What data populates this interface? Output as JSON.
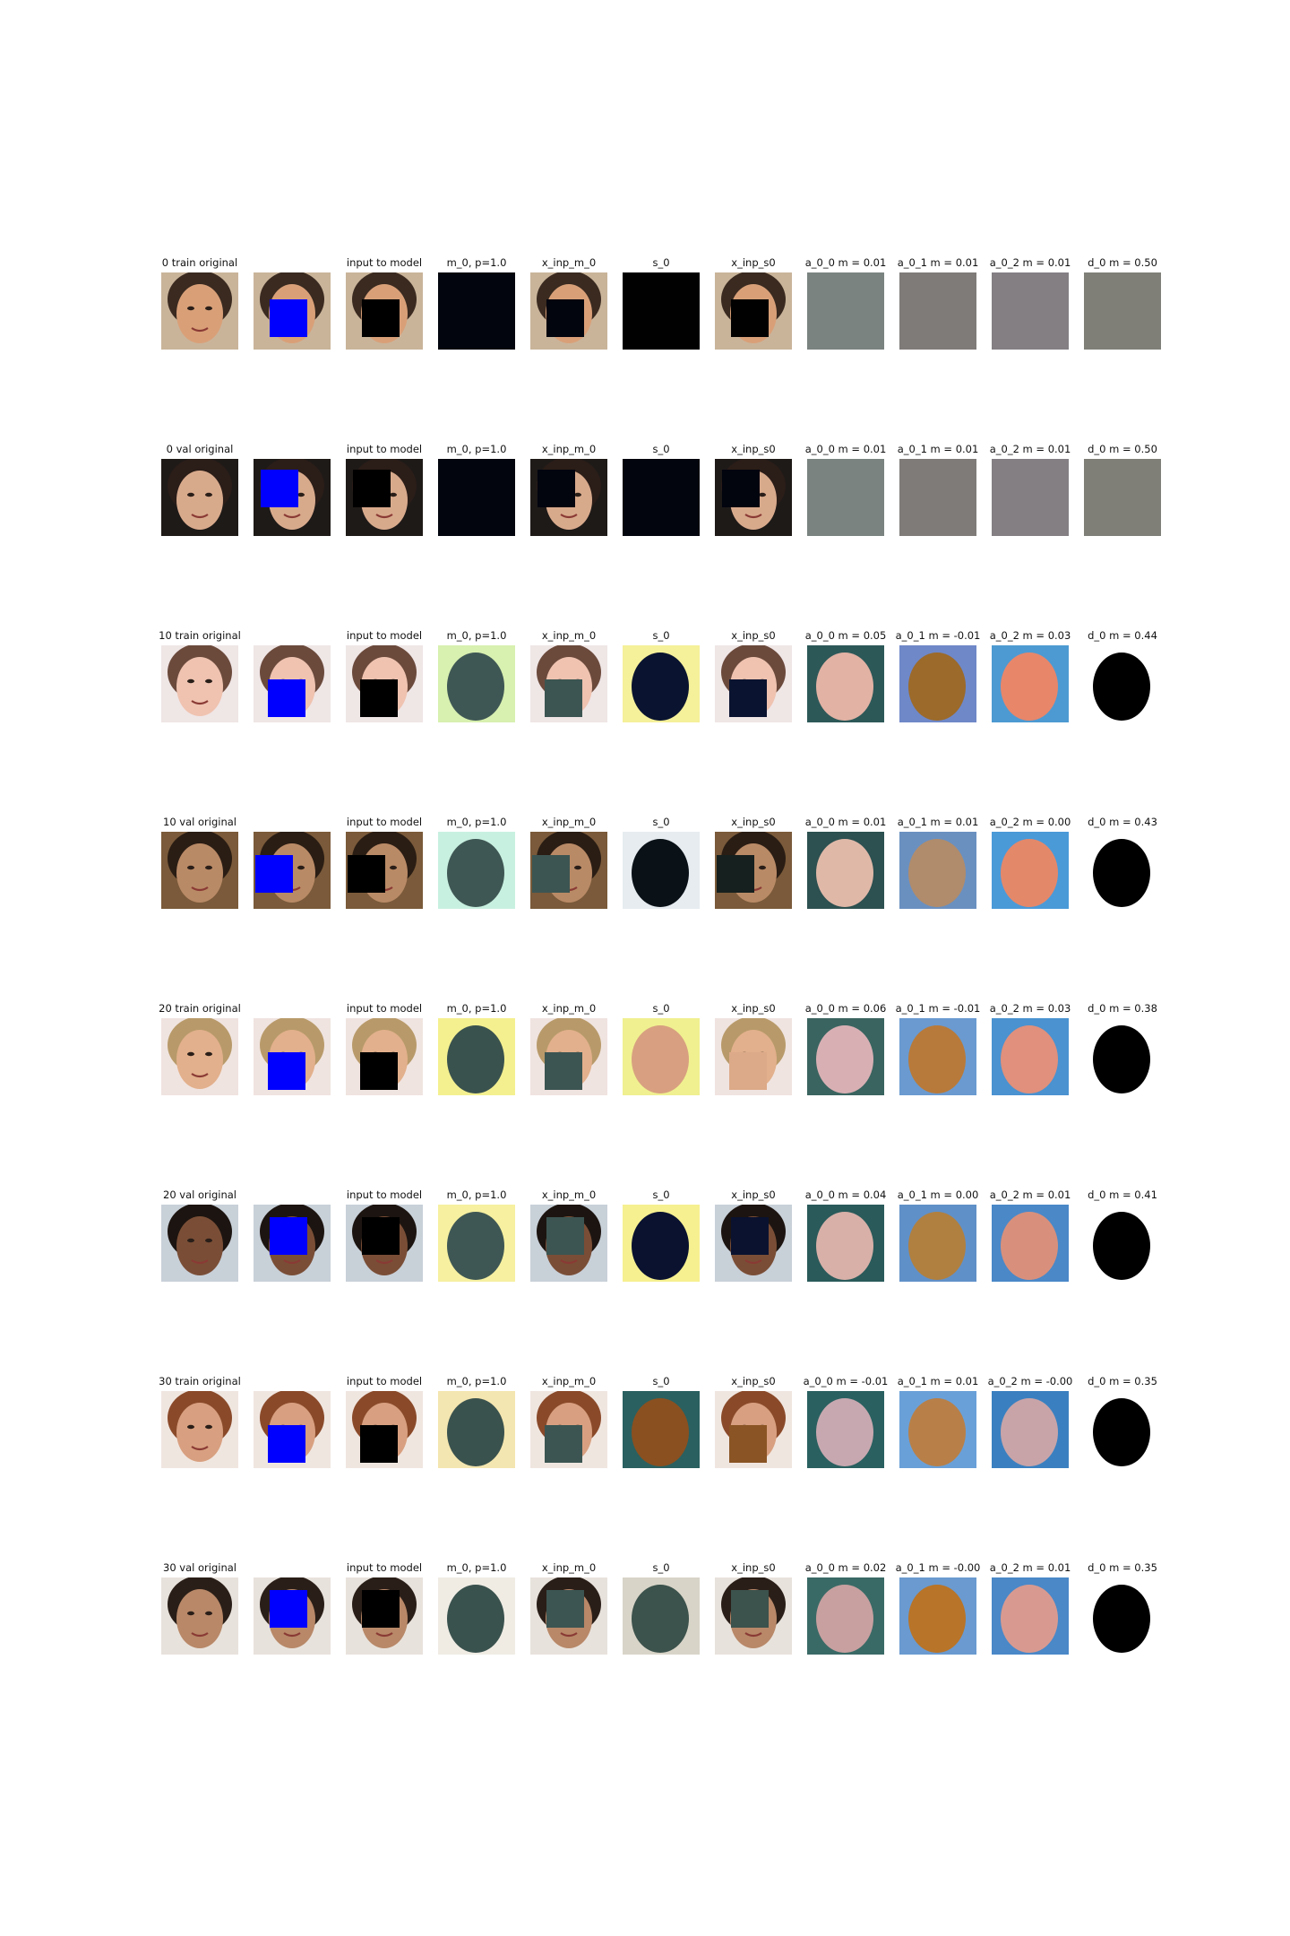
{
  "colors": {
    "mask_fill": "#0000ff",
    "hole_fill": "#000000",
    "m0_initial": "#02040e",
    "a00_initial": "#7a8380",
    "a01_initial": "#7f7b79",
    "a02_initial": "#837f83",
    "d0_initial": "#7f7f78"
  },
  "rows": [
    {
      "label": "0 train  original",
      "skin": "#d9a078",
      "hair": "#3a2a20",
      "bg": "#c9b49a",
      "mask_pos": "center-low",
      "titles": [
        "0 train  original",
        "",
        "input to model",
        "m_0, p=1.0",
        "x_inp_m_0",
        "s_0",
        "x_inp_s0",
        "a_0_0 m = 0.01",
        "a_0_1 m = 0.01",
        "a_0_2 m = 0.01",
        "d_0 m = 0.50"
      ],
      "fills": {
        "m0": "#02040e",
        "patch_m0": "#02040e",
        "s0": "#020101",
        "patch_s0": "#020101",
        "a00": "#7a8380",
        "a01": "#7f7b79",
        "a02": "#837f83",
        "d0": "#7f7f78"
      },
      "flat": true
    },
    {
      "label": "0 val  original",
      "skin": "#d8aa8c",
      "hair": "#2b1d18",
      "bg": "#1e1a18",
      "mask_pos": "upper-left",
      "titles": [
        "0 val  original",
        "",
        "input to model",
        "m_0, p=1.0",
        "x_inp_m_0",
        "s_0",
        "x_inp_s0",
        "a_0_0 m = 0.01",
        "a_0_1 m = 0.01",
        "a_0_2 m = 0.01",
        "d_0 m = 0.50"
      ],
      "fills": {
        "m0": "#02040e",
        "patch_m0": "#02040e",
        "s0": "#02040e",
        "patch_s0": "#02040e",
        "a00": "#7a8380",
        "a01": "#7f7b79",
        "a02": "#837f83",
        "d0": "#7f7f78"
      },
      "flat": true
    },
    {
      "label": "10 train  original",
      "skin": "#efc3b0",
      "hair": "#6b4a3c",
      "bg": "#efe6e6",
      "mask_pos": "lower-center",
      "titles": [
        "10 train  original",
        "",
        "input to model",
        "m_0, p=1.0",
        "x_inp_m_0",
        "s_0",
        "x_inp_s0",
        "a_0_0 m = 0.05",
        "a_0_1 m = -0.01",
        "a_0_2 m = 0.03",
        "d_0 m = 0.44"
      ],
      "fills": {
        "m0": "#3f5754",
        "m0_bg": "#d8f0b0",
        "patch_m0": "#3c5552",
        "s0": "#0a1430",
        "s0_bg": "#f5f09a",
        "patch_s0": "#0a1430",
        "a00": "#e2b2a4",
        "a00_bg": "#2d5858",
        "a01": "#9c6a2a",
        "a01_bg": "#6f88c8",
        "a02": "#e8866a",
        "a02_bg": "#4d9ad2",
        "d0": "#000000",
        "d0_bg": "#ffffff"
      },
      "flat": false
    },
    {
      "label": "10 val  original",
      "skin": "#b98a66",
      "hair": "#2a1d14",
      "bg": "#7a5a3a",
      "mask_pos": "lower-left",
      "titles": [
        "10 val  original",
        "",
        "input to model",
        "m_0, p=1.0",
        "x_inp_m_0",
        "s_0",
        "x_inp_s0",
        "a_0_0 m = 0.01",
        "a_0_1 m = 0.01",
        "a_0_2 m = 0.00",
        "d_0 m = 0.43"
      ],
      "fills": {
        "m0": "#3f5754",
        "m0_bg": "#c8f0e0",
        "patch_m0": "#3c5552",
        "s0": "#0a1218",
        "s0_bg": "#e6ecf0",
        "patch_s0": "#16201e",
        "a00": "#e0b8a8",
        "a00_bg": "#2d5050",
        "a01": "#b08c6c",
        "a01_bg": "#6a90c0",
        "a02": "#e4886a",
        "a02_bg": "#4a9ad8",
        "d0": "#000000",
        "d0_bg": "#ffffff"
      },
      "flat": false
    },
    {
      "label": "20 train  original",
      "skin": "#e2b08c",
      "hair": "#b89a6a",
      "bg": "#f0e4e0",
      "mask_pos": "lower-center",
      "titles": [
        "20 train  original",
        "",
        "input to model",
        "m_0, p=1.0",
        "x_inp_m_0",
        "s_0",
        "x_inp_s0",
        "a_0_0 m = 0.06",
        "a_0_1 m = -0.01",
        "a_0_2 m = 0.03",
        "d_0 m = 0.38"
      ],
      "fills": {
        "m0": "#3a524e",
        "m0_bg": "#f4f090",
        "patch_m0": "#3c5552",
        "s0": "#d8a080",
        "s0_bg": "#f0f090",
        "patch_s0": "#dcaa88",
        "a00": "#d8b0b4",
        "a00_bg": "#3a6460",
        "a01": "#b87a3a",
        "a01_bg": "#6a9ad0",
        "a02": "#e0907c",
        "a02_bg": "#4a92d0",
        "d0": "#000000",
        "d0_bg": "#ffffff"
      },
      "flat": false
    },
    {
      "label": "20 val  original",
      "skin": "#7a4e36",
      "hair": "#1c1410",
      "bg": "#c8d0d8",
      "mask_pos": "upper-center",
      "titles": [
        "20 val  original",
        "",
        "input to model",
        "m_0, p=1.0",
        "x_inp_m_0",
        "s_0",
        "x_inp_s0",
        "a_0_0 m = 0.04",
        "a_0_1 m = 0.00",
        "a_0_2 m = 0.01",
        "d_0 m = 0.41"
      ],
      "fills": {
        "m0": "#3f5754",
        "m0_bg": "#f6f0a0",
        "patch_m0": "#3c5552",
        "s0": "#0a1230",
        "s0_bg": "#f6f090",
        "patch_s0": "#0a1230",
        "a00": "#d8b0a8",
        "a00_bg": "#2a5a5a",
        "a01": "#b08040",
        "a01_bg": "#6090c8",
        "a02": "#d8907c",
        "a02_bg": "#4a88c8",
        "d0": "#000000",
        "d0_bg": "#ffffff"
      },
      "flat": false
    },
    {
      "label": "30 train  original",
      "skin": "#d8a080",
      "hair": "#8a4a2a",
      "bg": "#f0e6e0",
      "mask_pos": "lower-center",
      "titles": [
        "30 train  original",
        "",
        "input to model",
        "m_0, p=1.0",
        "x_inp_m_0",
        "s_0",
        "x_inp_s0",
        "a_0_0 m = -0.01",
        "a_0_1 m = 0.01",
        "a_0_2 m = -0.00",
        "d_0 m = 0.35"
      ],
      "fills": {
        "m0": "#3a524e",
        "m0_bg": "#f4e6b0",
        "patch_m0": "#3c5552",
        "s0": "#8a5020",
        "s0_bg": "#2a6060",
        "patch_s0": "#8a5424",
        "a00": "#c8a8b0",
        "a00_bg": "#2a6060",
        "a01": "#b88048",
        "a01_bg": "#6aa0d8",
        "a02": "#c8a4a8",
        "a02_bg": "#3a80c0",
        "d0": "#000000",
        "d0_bg": "#ffffff"
      },
      "flat": false
    },
    {
      "label": "30 val  original",
      "skin": "#b88868",
      "hair": "#2a1e18",
      "bg": "#e8e2dc",
      "mask_pos": "upper-center",
      "titles": [
        "30 val  original",
        "",
        "input to model",
        "m_0, p=1.0",
        "x_inp_m_0",
        "s_0",
        "x_inp_s0",
        "a_0_0 m = 0.02",
        "a_0_1 m = -0.00",
        "a_0_2 m = 0.01",
        "d_0 m = 0.35"
      ],
      "fills": {
        "m0": "#3a524e",
        "m0_bg": "#f0ece4",
        "patch_m0": "#3c5552",
        "s0": "#3c524c",
        "s0_bg": "#d8d4c8",
        "patch_s0": "#3c524c",
        "a00": "#c8a0a0",
        "a00_bg": "#3a6a66",
        "a01": "#b87428",
        "a01_bg": "#6a9ad0",
        "a02": "#d89a90",
        "a02_bg": "#4a88c8",
        "d0": "#000000",
        "d0_bg": "#ffffff"
      },
      "flat": false
    }
  ]
}
